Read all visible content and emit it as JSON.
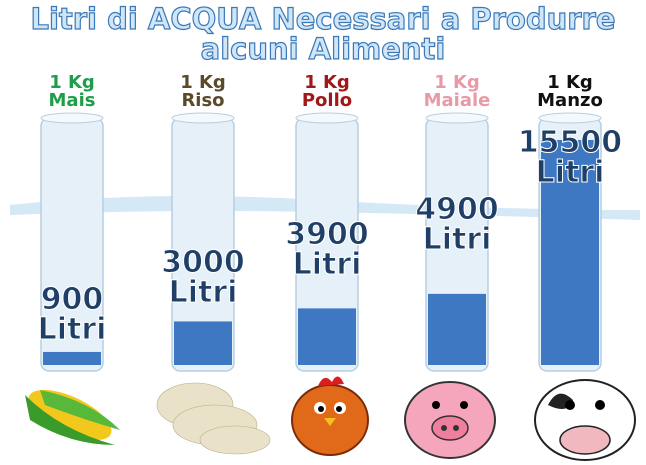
{
  "chart_data": {
    "type": "bar",
    "title": "Litri di ACQUA Necessari a Produrre alcuni Alimenti",
    "categories": [
      "1 Kg Mais",
      "1 Kg Riso",
      "1 Kg Pollo",
      "1 Kg Maiale",
      "1 Kg Manzo"
    ],
    "category_colors": [
      "#1e9e4a",
      "#5a4a2a",
      "#a01818",
      "#e89aa6",
      "#111111"
    ],
    "values": [
      900,
      3000,
      3900,
      4900,
      15500
    ],
    "value_labels": [
      "900 Litri",
      "3000 Litri",
      "3900 Litri",
      "4900 Litri",
      "15500 Litri"
    ],
    "color": "#3f78c2"
  }
}
